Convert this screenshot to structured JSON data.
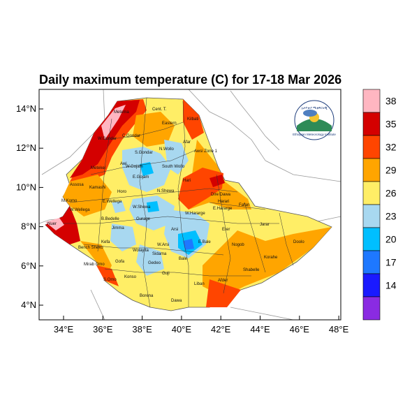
{
  "title": "Daily maximum temperature (C) for 17-18 Mar 2026",
  "axes": {
    "x_ticks": [
      "34°E",
      "36°E",
      "38°E",
      "40°E",
      "42°E",
      "44°E",
      "46°E",
      "48°E"
    ],
    "y_ticks": [
      "14°N",
      "12°N",
      "10°N",
      "8°N",
      "6°N",
      "4°N"
    ]
  },
  "colorbar": {
    "labels": [
      "38",
      "35",
      "32",
      "29",
      "26",
      "23",
      "20",
      "17",
      "14"
    ],
    "colors": [
      "#ffb6c1",
      "#d40000",
      "#ff4500",
      "#ffa500",
      "#ffee66",
      "#a8d8f0",
      "#00bfff",
      "#1e78ff",
      "#1a1aff",
      "#8a2be2"
    ]
  },
  "logo": {
    "top_text": "ኢትዮጵያ ሚቲዎሮሎጂ",
    "bottom_text": "Ethiopian Meteorology Institute"
  },
  "places": [
    {
      "name": "Metema"
    },
    {
      "name": "W.Gondar"
    },
    {
      "name": "C.Gondar"
    },
    {
      "name": "Cent. T."
    },
    {
      "name": "Eastern"
    },
    {
      "name": "Kilbati"
    },
    {
      "name": "Afar"
    },
    {
      "name": "Awsi Zone 1"
    },
    {
      "name": "N.Wollo"
    },
    {
      "name": "S.Gondar"
    },
    {
      "name": "Awi"
    },
    {
      "name": "W.Gojam"
    },
    {
      "name": "E.Gojam"
    },
    {
      "name": "South Wollo"
    },
    {
      "name": "Metekel"
    },
    {
      "name": "Kamashi"
    },
    {
      "name": "Assosa"
    },
    {
      "name": "Horo"
    },
    {
      "name": "N.Shewa"
    },
    {
      "name": "Hari"
    },
    {
      "name": "Dire Dawa"
    },
    {
      "name": "Fafan"
    },
    {
      "name": "Harari"
    },
    {
      "name": "E.Hararge"
    },
    {
      "name": "W.Hararge"
    },
    {
      "name": "E.Wellega"
    },
    {
      "name": "W.Wellega"
    },
    {
      "name": "M.Komo"
    },
    {
      "name": "W.Shewa"
    },
    {
      "name": "B.Bedelle"
    },
    {
      "name": "Nuer"
    },
    {
      "name": "Jimma"
    },
    {
      "name": "Gurage"
    },
    {
      "name": "Arsi"
    },
    {
      "name": "Erer"
    },
    {
      "name": "Jarar"
    },
    {
      "name": "Sidama"
    },
    {
      "name": "Wolayita"
    },
    {
      "name": "Kefa"
    },
    {
      "name": "Bench Sheko"
    },
    {
      "name": "Mirab Omo"
    },
    {
      "name": "S.Omo"
    },
    {
      "name": "Gofa"
    },
    {
      "name": "Konso"
    },
    {
      "name": "Gedeo"
    },
    {
      "name": "Bale"
    },
    {
      "name": "E.Bale"
    },
    {
      "name": "Nogob"
    },
    {
      "name": "Doolo"
    },
    {
      "name": "Korahe"
    },
    {
      "name": "Shabelle"
    },
    {
      "name": "Afder"
    },
    {
      "name": "Liban"
    },
    {
      "name": "Borena"
    },
    {
      "name": "Dawa"
    },
    {
      "name": "W.Arsi"
    },
    {
      "name": "Guji"
    }
  ]
}
